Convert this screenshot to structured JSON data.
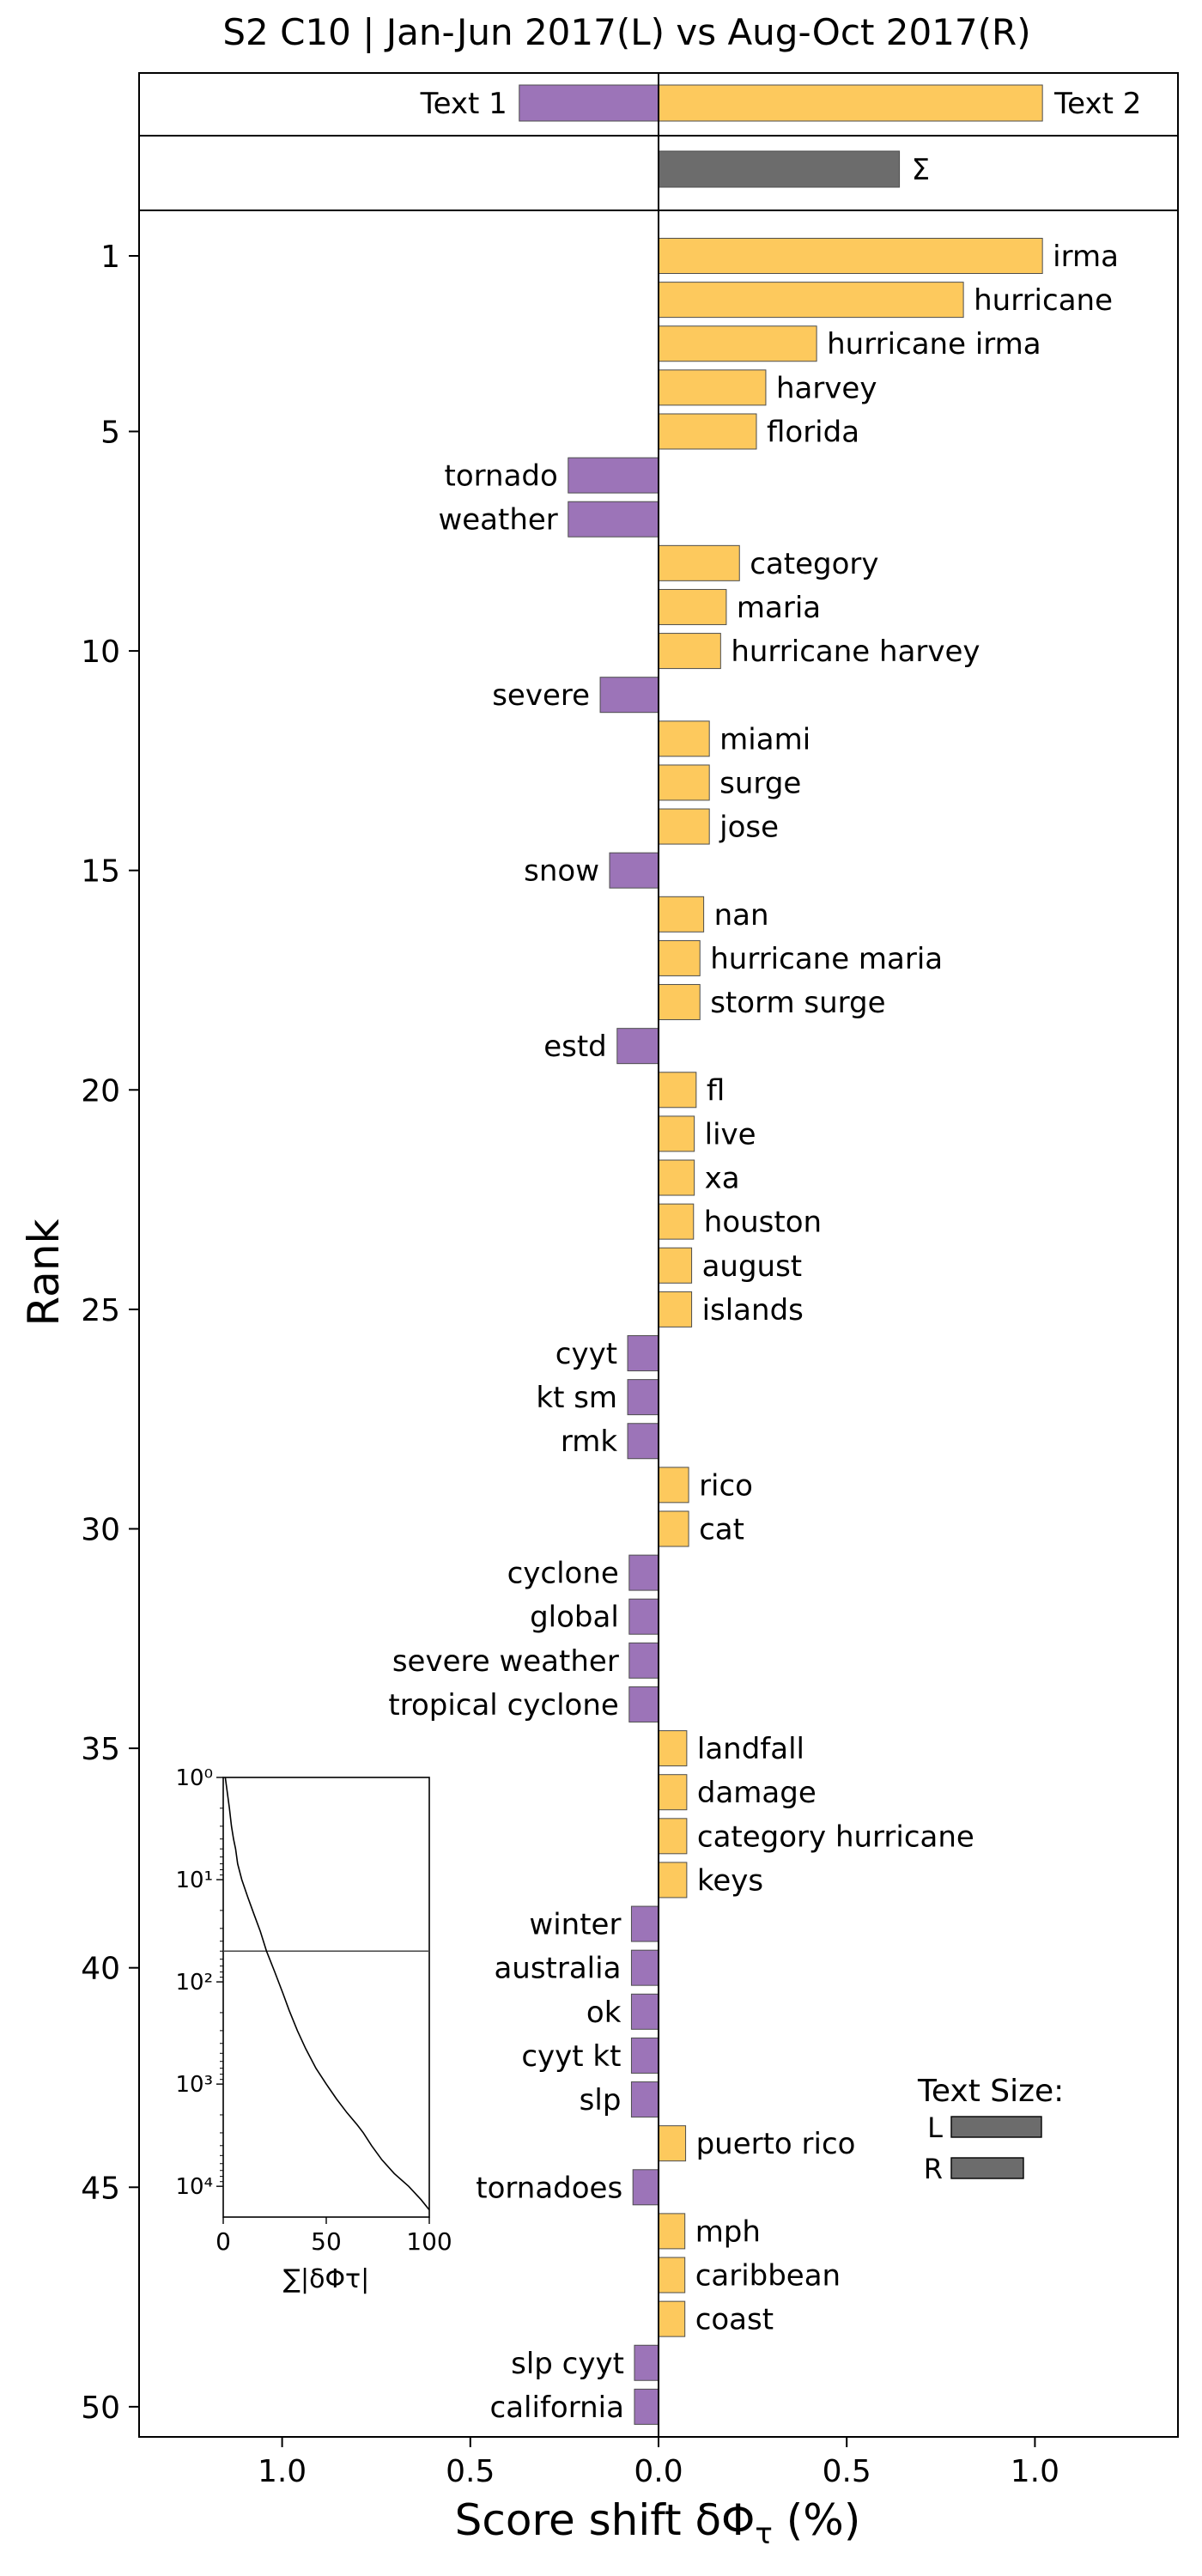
{
  "chart_data": {
    "type": "bar",
    "orientation": "horizontal",
    "title": "S2 C10 | Jan-Jun 2017(L) vs Aug-Oct 2017(R)",
    "xlabel": "Score shift δΦ",
    "xlabel_sub": "τ",
    "xlabel_unit": "(%)",
    "ylabel": "Rank",
    "xlim": [
      -1.38,
      1.38
    ],
    "xtick_values": [
      -1.0,
      -0.5,
      0.0,
      0.5,
      1.0
    ],
    "xtick_labels": [
      "1.0",
      "0.5",
      "0.0",
      "0.5",
      "1.0"
    ],
    "ytick_values": [
      1,
      5,
      10,
      15,
      20,
      25,
      30,
      35,
      40,
      45,
      50
    ],
    "colors": {
      "left": "#9c74b8",
      "right": "#fdc95d",
      "total": "#6c6c6c",
      "edge": "#4d4d4d"
    },
    "summary": {
      "text1_label": "Text 1",
      "text2_label": "Text 2",
      "text1_value": -0.37,
      "text2_value": 1.02,
      "sigma_label": "Σ",
      "sigma_value": 0.64
    },
    "words": [
      {
        "rank": 1,
        "label": "irma",
        "value": 1.02
      },
      {
        "rank": 2,
        "label": "hurricane",
        "value": 0.81
      },
      {
        "rank": 3,
        "label": "hurricane irma",
        "value": 0.42
      },
      {
        "rank": 4,
        "label": "harvey",
        "value": 0.285
      },
      {
        "rank": 5,
        "label": "florida",
        "value": 0.26
      },
      {
        "rank": 6,
        "label": "tornado",
        "value": -0.24
      },
      {
        "rank": 7,
        "label": "weather",
        "value": -0.24
      },
      {
        "rank": 8,
        "label": "category",
        "value": 0.215
      },
      {
        "rank": 9,
        "label": "maria",
        "value": 0.18
      },
      {
        "rank": 10,
        "label": "hurricane harvey",
        "value": 0.165
      },
      {
        "rank": 11,
        "label": "severe",
        "value": -0.155
      },
      {
        "rank": 12,
        "label": "miami",
        "value": 0.135
      },
      {
        "rank": 13,
        "label": "surge",
        "value": 0.135
      },
      {
        "rank": 14,
        "label": "jose",
        "value": 0.135
      },
      {
        "rank": 15,
        "label": "snow",
        "value": -0.13
      },
      {
        "rank": 16,
        "label": "nan",
        "value": 0.12
      },
      {
        "rank": 17,
        "label": "hurricane maria",
        "value": 0.11
      },
      {
        "rank": 18,
        "label": "storm surge",
        "value": 0.11
      },
      {
        "rank": 19,
        "label": "estd",
        "value": -0.11
      },
      {
        "rank": 20,
        "label": "fl",
        "value": 0.1
      },
      {
        "rank": 21,
        "label": "live",
        "value": 0.095
      },
      {
        "rank": 22,
        "label": "xa",
        "value": 0.095
      },
      {
        "rank": 23,
        "label": "houston",
        "value": 0.093
      },
      {
        "rank": 24,
        "label": "august",
        "value": 0.088
      },
      {
        "rank": 25,
        "label": "islands",
        "value": 0.088
      },
      {
        "rank": 26,
        "label": "cyyt",
        "value": -0.082
      },
      {
        "rank": 27,
        "label": "kt sm",
        "value": -0.082
      },
      {
        "rank": 28,
        "label": "rmk",
        "value": -0.082
      },
      {
        "rank": 29,
        "label": "rico",
        "value": 0.08
      },
      {
        "rank": 30,
        "label": "cat",
        "value": 0.08
      },
      {
        "rank": 31,
        "label": "cyclone",
        "value": -0.078
      },
      {
        "rank": 32,
        "label": "global",
        "value": -0.078
      },
      {
        "rank": 33,
        "label": "severe weather",
        "value": -0.078
      },
      {
        "rank": 34,
        "label": "tropical cyclone",
        "value": -0.078
      },
      {
        "rank": 35,
        "label": "landfall",
        "value": 0.075
      },
      {
        "rank": 36,
        "label": "damage",
        "value": 0.075
      },
      {
        "rank": 37,
        "label": "category hurricane",
        "value": 0.075
      },
      {
        "rank": 38,
        "label": "keys",
        "value": 0.075
      },
      {
        "rank": 39,
        "label": "winter",
        "value": -0.072
      },
      {
        "rank": 40,
        "label": "australia",
        "value": -0.072
      },
      {
        "rank": 41,
        "label": "ok",
        "value": -0.072
      },
      {
        "rank": 42,
        "label": "cyyt kt",
        "value": -0.072
      },
      {
        "rank": 43,
        "label": "slp",
        "value": -0.072
      },
      {
        "rank": 44,
        "label": "puerto rico",
        "value": 0.072
      },
      {
        "rank": 45,
        "label": "tornadoes",
        "value": -0.068
      },
      {
        "rank": 46,
        "label": "mph",
        "value": 0.07
      },
      {
        "rank": 47,
        "label": "caribbean",
        "value": 0.07
      },
      {
        "rank": 48,
        "label": "coast",
        "value": 0.07
      },
      {
        "rank": 49,
        "label": "slp cyyt",
        "value": -0.064
      },
      {
        "rank": 50,
        "label": "california",
        "value": -0.064
      }
    ],
    "inset": {
      "xlabel": "∑|δΦτ|",
      "xlim": [
        0,
        100
      ],
      "xtick_values": [
        0,
        50,
        100
      ],
      "xtick_labels": [
        "0",
        "50",
        "100"
      ],
      "y_scale": "log",
      "ylim": [
        1,
        20000
      ],
      "ytick_labels": [
        "10⁰",
        "10¹",
        "10²",
        "10³",
        "10⁴"
      ],
      "threshold_rank": 50,
      "curve": [
        [
          1,
          1
        ],
        [
          3,
          2
        ],
        [
          4,
          3
        ],
        [
          5,
          4
        ],
        [
          6,
          5
        ],
        [
          7,
          7
        ],
        [
          9,
          10
        ],
        [
          12,
          15
        ],
        [
          15,
          22
        ],
        [
          18,
          32
        ],
        [
          21,
          50
        ],
        [
          25,
          80
        ],
        [
          29,
          130
        ],
        [
          32,
          190
        ],
        [
          36,
          300
        ],
        [
          40,
          450
        ],
        [
          45,
          700
        ],
        [
          50,
          1000
        ],
        [
          55,
          1400
        ],
        [
          60,
          1900
        ],
        [
          65,
          2500
        ],
        [
          68,
          3000
        ],
        [
          72,
          4000
        ],
        [
          77,
          5500
        ],
        [
          83,
          7500
        ],
        [
          90,
          10000
        ],
        [
          96,
          13500
        ],
        [
          100,
          17000
        ]
      ]
    },
    "text_size": {
      "title": "Text Size:",
      "labels": [
        "L",
        "R"
      ],
      "values": [
        1.0,
        0.8
      ]
    }
  }
}
